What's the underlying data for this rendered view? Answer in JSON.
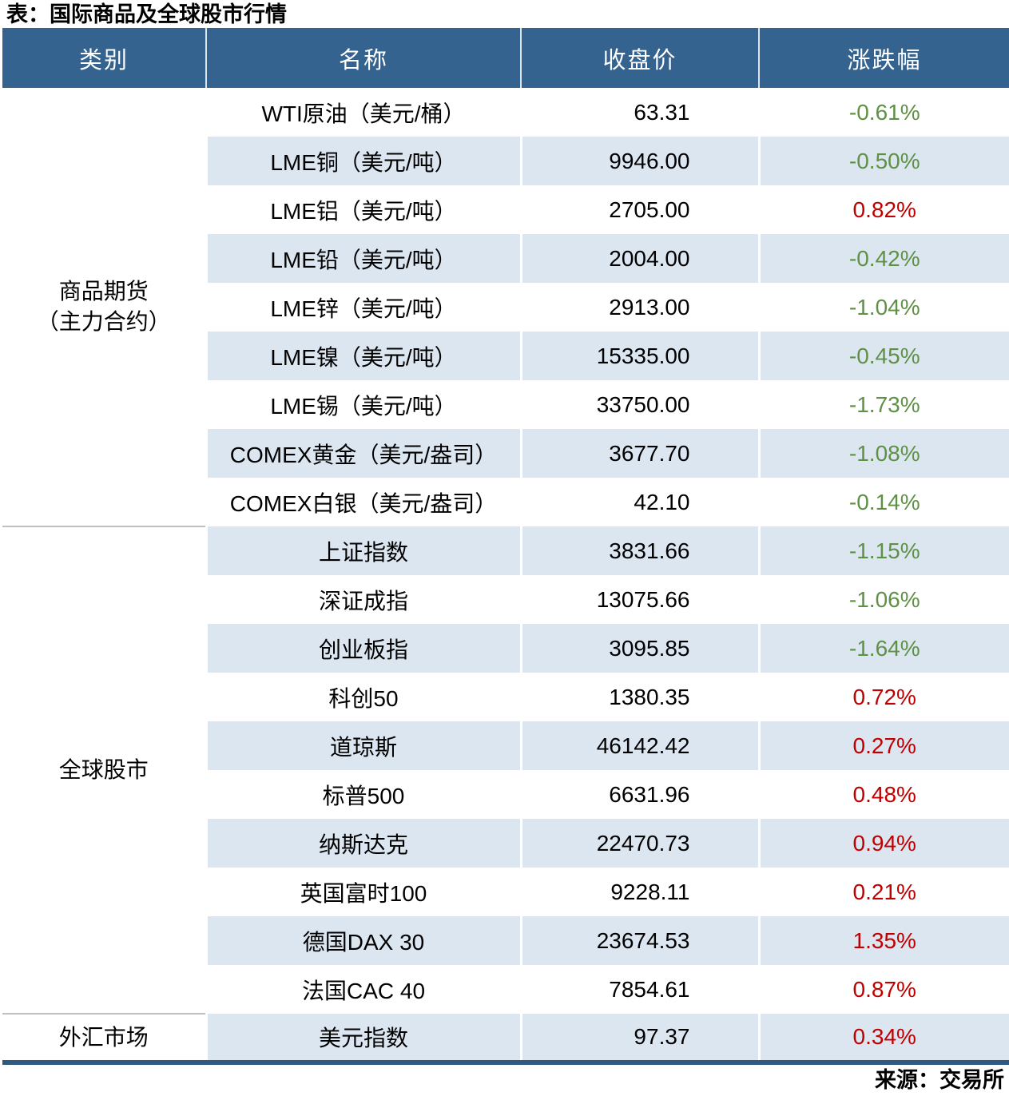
{
  "title": "表：国际商品及全球股市行情",
  "source": "来源：交易所",
  "colors": {
    "header_bg": "#35638f",
    "row_alt_bg": "#dce6f1",
    "up_red": "#c00000",
    "down_green": "#5e9144",
    "bottom_border": "#2e5a80",
    "section_divider": "#bfbfbf"
  },
  "table": {
    "columns": [
      "类别",
      "名称",
      "收盘价",
      "涨跌幅"
    ],
    "sections": [
      {
        "category_lines": [
          "商品期货",
          "（主力合约）"
        ],
        "rows": [
          {
            "name": "WTI原油（美元/桶）",
            "close": "63.31",
            "change": "-0.61%",
            "direction": "down"
          },
          {
            "name": "LME铜（美元/吨）",
            "close": "9946.00",
            "change": "-0.50%",
            "direction": "down"
          },
          {
            "name": "LME铝（美元/吨）",
            "close": "2705.00",
            "change": "0.82%",
            "direction": "up"
          },
          {
            "name": "LME铅（美元/吨）",
            "close": "2004.00",
            "change": "-0.42%",
            "direction": "down"
          },
          {
            "name": "LME锌（美元/吨）",
            "close": "2913.00",
            "change": "-1.04%",
            "direction": "down"
          },
          {
            "name": "LME镍（美元/吨）",
            "close": "15335.00",
            "change": "-0.45%",
            "direction": "down"
          },
          {
            "name": "LME锡（美元/吨）",
            "close": "33750.00",
            "change": "-1.73%",
            "direction": "down"
          },
          {
            "name": "COMEX黄金（美元/盎司）",
            "close": "3677.70",
            "change": "-1.08%",
            "direction": "down"
          },
          {
            "name": "COMEX白银（美元/盎司）",
            "close": "42.10",
            "change": "-0.14%",
            "direction": "down"
          }
        ]
      },
      {
        "category_lines": [
          "全球股市"
        ],
        "rows": [
          {
            "name": "上证指数",
            "close": "3831.66",
            "change": "-1.15%",
            "direction": "down"
          },
          {
            "name": "深证成指",
            "close": "13075.66",
            "change": "-1.06%",
            "direction": "down"
          },
          {
            "name": "创业板指",
            "close": "3095.85",
            "change": "-1.64%",
            "direction": "down"
          },
          {
            "name": "科创50",
            "close": "1380.35",
            "change": "0.72%",
            "direction": "up"
          },
          {
            "name": "道琼斯",
            "close": "46142.42",
            "change": "0.27%",
            "direction": "up"
          },
          {
            "name": "标普500",
            "close": "6631.96",
            "change": "0.48%",
            "direction": "up"
          },
          {
            "name": "纳斯达克",
            "close": "22470.73",
            "change": "0.94%",
            "direction": "up"
          },
          {
            "name": "英国富时100",
            "close": "9228.11",
            "change": "0.21%",
            "direction": "up"
          },
          {
            "name": "德国DAX 30",
            "close": "23674.53",
            "change": "1.35%",
            "direction": "up"
          },
          {
            "name": "法国CAC 40",
            "close": "7854.61",
            "change": "0.87%",
            "direction": "up"
          }
        ]
      },
      {
        "category_lines": [
          "外汇市场"
        ],
        "rows": [
          {
            "name": "美元指数",
            "close": "97.37",
            "change": "0.34%",
            "direction": "up"
          }
        ]
      }
    ]
  }
}
